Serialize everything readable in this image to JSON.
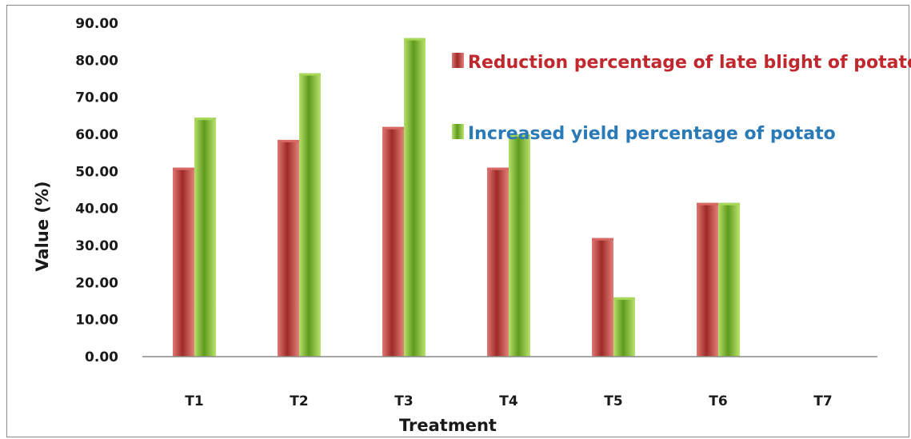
{
  "chart_data": {
    "type": "bar",
    "categories": [
      "T1",
      "T2",
      "T3",
      "T4",
      "T5",
      "T6",
      "T7"
    ],
    "series": [
      {
        "name": "Reduction percentage of late blight of potato",
        "values": [
          51,
          58.5,
          62,
          51,
          32,
          41.5,
          0
        ],
        "color": "#c0504d",
        "label_color": "#c0282d"
      },
      {
        "name": "Increased yield percentage of potato",
        "values": [
          64.5,
          76.5,
          86,
          60,
          16,
          41.5,
          0
        ],
        "color": "#8fc43a",
        "label_color": "#2a7ab8"
      }
    ],
    "xlabel": "Treatment",
    "ylabel": "Value (%)",
    "ylim": [
      0,
      90
    ],
    "yticks": [
      "0.00",
      "10.00",
      "20.00",
      "30.00",
      "40.00",
      "50.00",
      "60.00",
      "70.00",
      "80.00",
      "90.00"
    ],
    "grid": false,
    "legend_position": "top-right"
  }
}
